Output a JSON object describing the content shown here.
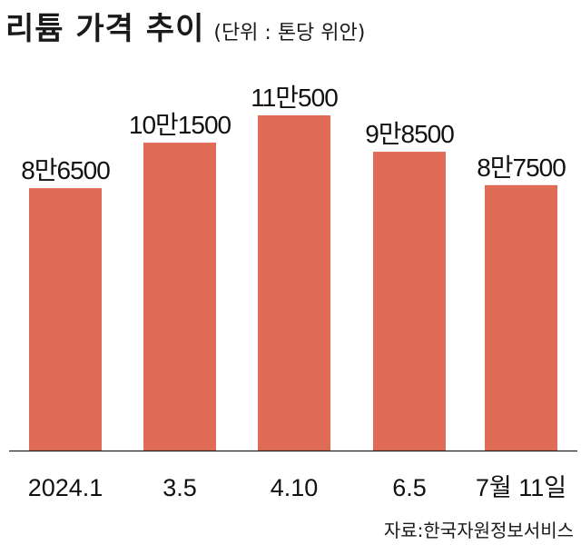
{
  "header": {
    "title": "리튬 가격 추이",
    "subtitle": "(단위 : 톤당 위안)"
  },
  "source": "자료:한국자원정보서비스",
  "colors": {
    "bar": "#E06B56",
    "axis": "#222222",
    "text": "#111111"
  },
  "chart_data": {
    "type": "bar",
    "title": "리튬 가격 추이",
    "unit": "(단위 : 톤당 위안)",
    "categories": [
      "2024.1",
      "3.5",
      "4.10",
      "6.5",
      "7월 11일"
    ],
    "values": [
      86500,
      101500,
      110500,
      98500,
      87500
    ],
    "value_labels": [
      "8만6500",
      "10만1500",
      "11만500",
      "9만8500",
      "8만7500"
    ],
    "xlabel": "",
    "ylabel": "",
    "grid": false,
    "legend": "none"
  }
}
